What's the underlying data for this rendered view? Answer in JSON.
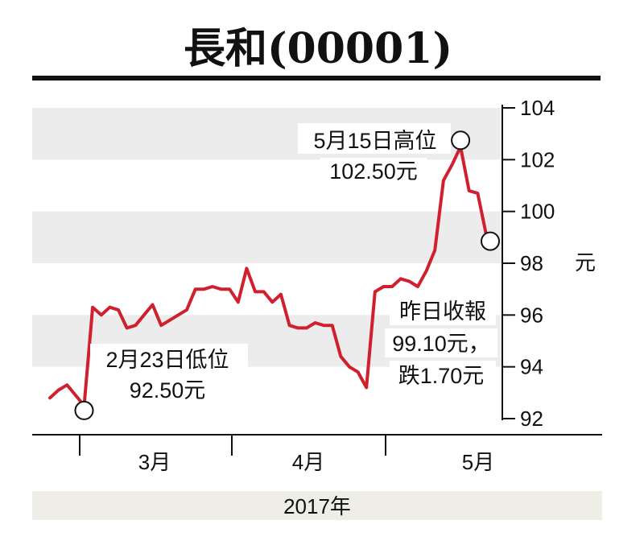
{
  "title": "長和(00001)",
  "unit": "元",
  "year_label": "2017年",
  "annotations": {
    "low_line1": "2月23日低位",
    "low_line2": "92.50元",
    "high_line1": "5月15日高位",
    "high_line2": "102.50元",
    "close_line1": "昨日收報",
    "close_line2": "99.10元，",
    "close_line3": "跌1.70元"
  },
  "colors": {
    "line": "#d0202e",
    "band": "#ececec",
    "year_band": "#efeee6"
  },
  "chart_data": {
    "type": "line",
    "title": "長和(00001)",
    "xlabel": "2017年",
    "ylabel": "元",
    "ylim": [
      92,
      104
    ],
    "yticks": [
      92,
      94,
      96,
      98,
      100,
      102,
      104
    ],
    "month_labels": [
      "3月",
      "4月",
      "5月"
    ],
    "grid": "alternating horizontal bands",
    "series": [
      {
        "values": [
          92.8,
          93.1,
          93.3,
          92.9,
          92.5,
          96.3,
          96.0,
          96.3,
          96.2,
          95.5,
          95.6,
          96.0,
          96.4,
          95.6,
          95.8,
          96.0,
          96.2,
          97.0,
          97.0,
          97.1,
          97.0,
          97.0,
          96.5,
          97.8,
          96.9,
          96.9,
          96.5,
          96.8,
          95.6,
          95.5,
          95.5,
          95.7,
          95.6,
          95.6,
          94.4,
          94.0,
          93.8,
          93.2,
          96.9,
          97.1,
          97.1,
          97.4,
          97.3,
          97.1,
          97.7,
          98.5,
          101.2,
          101.8,
          102.5,
          100.8,
          100.7,
          99.1
        ]
      }
    ],
    "annotations": [
      {
        "label": "2月23日低位",
        "value": 92.5
      },
      {
        "label": "5月15日高位",
        "value": 102.5
      },
      {
        "label": "昨日收報",
        "value": 99.1,
        "change": -1.7
      }
    ]
  }
}
